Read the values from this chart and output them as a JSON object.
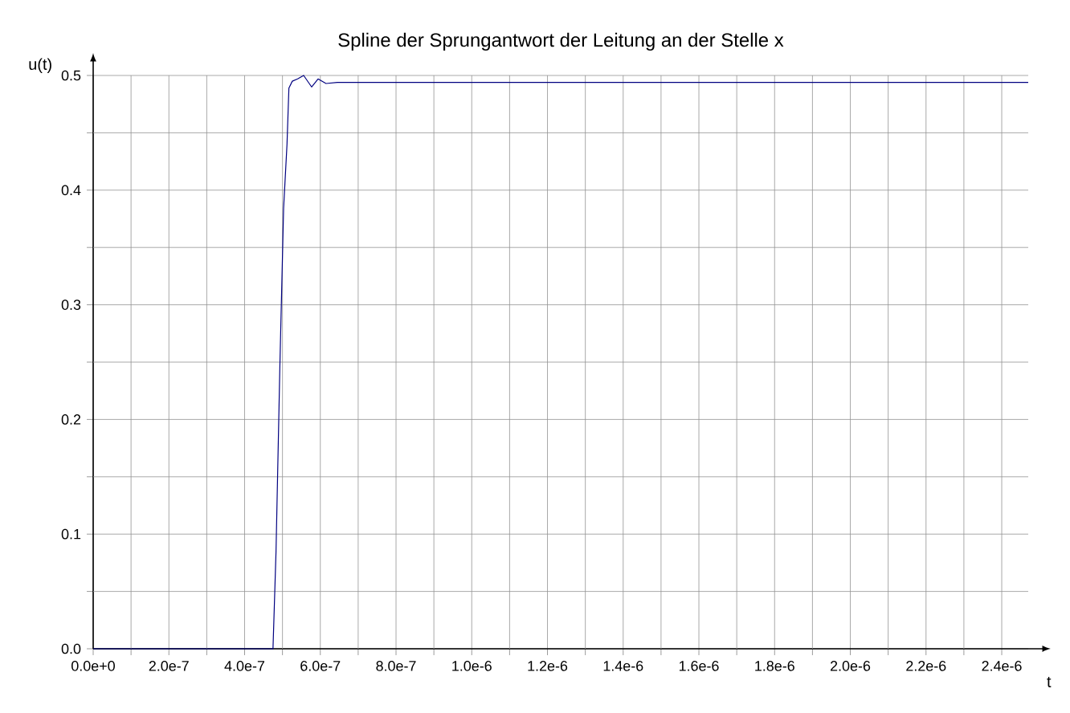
{
  "chart_data": {
    "type": "line",
    "title": "Spline der Sprungantwort der Leitung an der Stelle x",
    "xlabel": "t",
    "ylabel": "u(t)",
    "grid": true,
    "marker": "none",
    "line_style": "solid",
    "xlim": [
      0,
      2.47e-06
    ],
    "ylim": [
      0,
      0.5
    ],
    "xticks": [
      {
        "value": 0,
        "label": "0.0e+0"
      },
      {
        "value": 1e-07,
        "label": null
      },
      {
        "value": 2e-07,
        "label": "2.0e-7"
      },
      {
        "value": 3e-07,
        "label": null
      },
      {
        "value": 4e-07,
        "label": "4.0e-7"
      },
      {
        "value": 5e-07,
        "label": null
      },
      {
        "value": 6e-07,
        "label": "6.0e-7"
      },
      {
        "value": 7e-07,
        "label": null
      },
      {
        "value": 8e-07,
        "label": "8.0e-7"
      },
      {
        "value": 9e-07,
        "label": null
      },
      {
        "value": 1e-06,
        "label": "1.0e-6"
      },
      {
        "value": 1.1e-06,
        "label": null
      },
      {
        "value": 1.2e-06,
        "label": "1.2e-6"
      },
      {
        "value": 1.3e-06,
        "label": null
      },
      {
        "value": 1.4e-06,
        "label": "1.4e-6"
      },
      {
        "value": 1.5e-06,
        "label": null
      },
      {
        "value": 1.6e-06,
        "label": "1.6e-6"
      },
      {
        "value": 1.7e-06,
        "label": null
      },
      {
        "value": 1.8e-06,
        "label": "1.8e-6"
      },
      {
        "value": 1.9e-06,
        "label": null
      },
      {
        "value": 2e-06,
        "label": "2.0e-6"
      },
      {
        "value": 2.1e-06,
        "label": null
      },
      {
        "value": 2.2e-06,
        "label": "2.2e-6"
      },
      {
        "value": 2.3e-06,
        "label": null
      },
      {
        "value": 2.4e-06,
        "label": "2.4e-6"
      }
    ],
    "yticks": [
      {
        "value": 0,
        "label": "0.0"
      },
      {
        "value": 0.05,
        "label": null
      },
      {
        "value": 0.1,
        "label": "0.1"
      },
      {
        "value": 0.15,
        "label": null
      },
      {
        "value": 0.2,
        "label": "0.2"
      },
      {
        "value": 0.25,
        "label": null
      },
      {
        "value": 0.3,
        "label": "0.3"
      },
      {
        "value": 0.35,
        "label": null
      },
      {
        "value": 0.4,
        "label": "0.4"
      },
      {
        "value": 0.45,
        "label": null
      },
      {
        "value": 0.5,
        "label": "0.5"
      }
    ],
    "x": [
      0,
      1e-07,
      2e-07,
      3e-07,
      4e-07,
      4.5e-07,
      4.75e-07,
      4.83e-07,
      4.93e-07,
      5.03e-07,
      5.12e-07,
      5.17e-07,
      5.26e-07,
      5.4e-07,
      5.56e-07,
      5.77e-07,
      5.94e-07,
      6.15e-07,
      6.45e-07,
      8e-07,
      1e-06,
      1.3e-06,
      1.6e-06,
      2e-06,
      2.47e-06
    ],
    "series": [
      {
        "color": "#000080",
        "values": [
          0,
          0,
          0,
          0,
          0,
          0,
          0,
          0.085,
          0.244,
          0.384,
          0.44,
          0.489,
          0.495,
          0.497,
          0.5,
          0.49,
          0.497,
          0.493,
          0.494,
          0.494,
          0.494,
          0.494,
          0.494,
          0.494,
          0.494
        ]
      }
    ]
  }
}
